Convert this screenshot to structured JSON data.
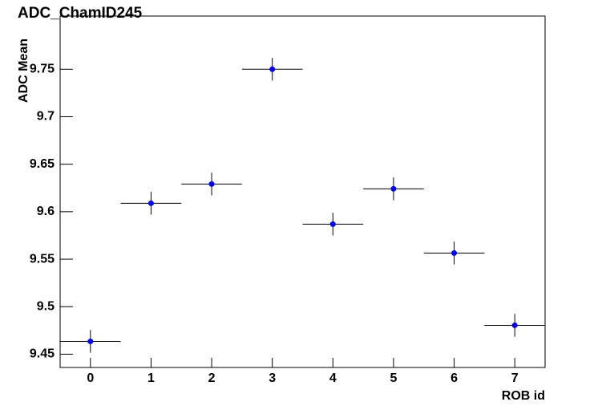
{
  "chart_data": {
    "type": "scatter",
    "title": "ADC_ChamID245",
    "x_label": "ROB id",
    "y_label": "ADC Mean",
    "x": [
      0,
      1,
      2,
      3,
      4,
      5,
      6,
      7
    ],
    "values": [
      9.4635,
      9.6089,
      9.6291,
      9.75,
      9.5869,
      9.6241,
      9.5565,
      9.4804
    ],
    "yerr": [
      0.012,
      0.012,
      0.012,
      0.012,
      0.012,
      0.012,
      0.012,
      0.012
    ],
    "xerr": [
      0.5,
      0.5,
      0.5,
      0.5,
      0.5,
      0.5,
      0.5,
      0.5
    ],
    "color": "#0000ff",
    "xlim": [
      -0.5,
      7.5
    ],
    "xticks": [
      0,
      1,
      2,
      3,
      4,
      5,
      6,
      7
    ],
    "ylim": [
      9.436,
      9.806
    ],
    "yticks": [
      9.45,
      9.5,
      9.55,
      9.6,
      9.65,
      9.7,
      9.75
    ],
    "grid": false
  }
}
